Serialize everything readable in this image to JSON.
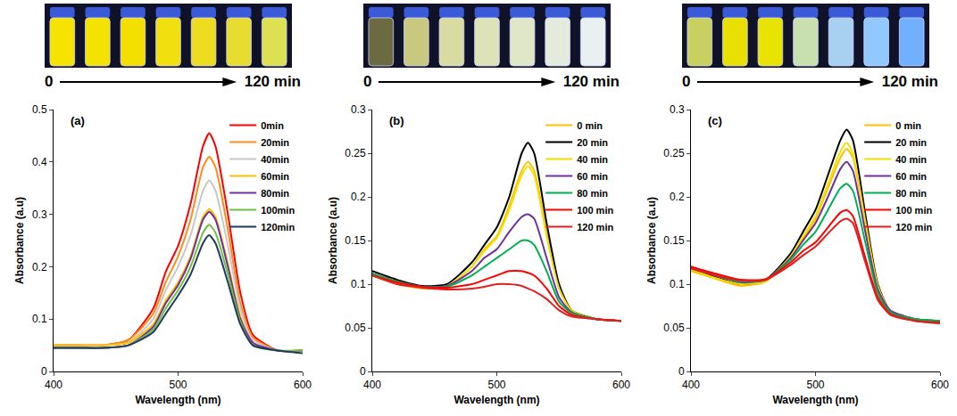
{
  "chart_data": [
    {
      "type": "line",
      "annotations": [
        "(a)",
        "0",
        "120 min"
      ],
      "x_label": "Wavelength (nm)",
      "y_label": "Absorbance (a.u)",
      "xlim": [
        400,
        600
      ],
      "xticks": [
        400,
        500,
        600
      ],
      "ylim": [
        0,
        0.5
      ],
      "yticks": [
        0,
        0.1,
        0.2,
        0.3,
        0.4,
        0.5
      ],
      "legend": "upper right",
      "grid": false,
      "x": [
        400,
        420,
        440,
        460,
        480,
        490,
        500,
        510,
        520,
        525,
        530,
        540,
        550,
        560,
        580,
        600
      ],
      "series": [
        {
          "name": "0min",
          "color": "#ff0000",
          "values": [
            0.05,
            0.05,
            0.05,
            0.06,
            0.12,
            0.19,
            0.24,
            0.32,
            0.43,
            0.455,
            0.43,
            0.3,
            0.15,
            0.07,
            0.04,
            0.04
          ]
        },
        {
          "name": "20min",
          "color": "#ff8c1a",
          "values": [
            0.05,
            0.05,
            0.05,
            0.06,
            0.11,
            0.17,
            0.22,
            0.29,
            0.39,
            0.41,
            0.39,
            0.27,
            0.13,
            0.065,
            0.04,
            0.04
          ]
        },
        {
          "name": "40min",
          "color": "#c8c8c8",
          "values": [
            0.05,
            0.05,
            0.05,
            0.055,
            0.1,
            0.155,
            0.2,
            0.26,
            0.345,
            0.365,
            0.345,
            0.24,
            0.12,
            0.06,
            0.04,
            0.04
          ]
        },
        {
          "name": "60min",
          "color": "#ffc000",
          "values": [
            0.05,
            0.05,
            0.05,
            0.055,
            0.09,
            0.135,
            0.17,
            0.22,
            0.295,
            0.31,
            0.295,
            0.205,
            0.105,
            0.055,
            0.04,
            0.04
          ]
        },
        {
          "name": "80min",
          "color": "#7030a0",
          "values": [
            0.045,
            0.045,
            0.045,
            0.05,
            0.085,
            0.13,
            0.165,
            0.215,
            0.29,
            0.305,
            0.29,
            0.2,
            0.1,
            0.055,
            0.04,
            0.04
          ]
        },
        {
          "name": "100min",
          "color": "#70c040",
          "values": [
            0.045,
            0.045,
            0.045,
            0.05,
            0.08,
            0.12,
            0.155,
            0.2,
            0.265,
            0.28,
            0.265,
            0.185,
            0.095,
            0.05,
            0.04,
            0.04
          ]
        },
        {
          "name": "120min",
          "color": "#1f3864",
          "values": [
            0.045,
            0.045,
            0.045,
            0.05,
            0.075,
            0.11,
            0.145,
            0.185,
            0.245,
            0.26,
            0.245,
            0.17,
            0.09,
            0.05,
            0.04,
            0.035
          ]
        }
      ]
    },
    {
      "type": "line",
      "annotations": [
        "(b)",
        "0",
        "120 min"
      ],
      "x_label": "Wavelength (nm)",
      "y_label": "Absorbance (a.u)",
      "xlim": [
        400,
        600
      ],
      "xticks": [
        400,
        500,
        600
      ],
      "ylim": [
        0,
        0.3
      ],
      "yticks": [
        0,
        0.05,
        0.1,
        0.15,
        0.2,
        0.25,
        0.3
      ],
      "legend": "upper right",
      "grid": false,
      "x": [
        400,
        420,
        440,
        460,
        480,
        490,
        500,
        510,
        520,
        525,
        530,
        540,
        550,
        560,
        580,
        600
      ],
      "series": [
        {
          "name": "0 min",
          "color": "#ffc000",
          "values": [
            0.11,
            0.1,
            0.095,
            0.097,
            0.12,
            0.14,
            0.155,
            0.19,
            0.23,
            0.24,
            0.23,
            0.16,
            0.095,
            0.07,
            0.06,
            0.058
          ]
        },
        {
          "name": "20 min",
          "color": "#000000",
          "values": [
            0.115,
            0.105,
            0.098,
            0.1,
            0.125,
            0.145,
            0.165,
            0.2,
            0.25,
            0.262,
            0.25,
            0.17,
            0.1,
            0.07,
            0.06,
            0.058
          ]
        },
        {
          "name": "40 min",
          "color": "#f2e000",
          "values": [
            0.112,
            0.102,
            0.096,
            0.098,
            0.12,
            0.138,
            0.153,
            0.185,
            0.225,
            0.235,
            0.225,
            0.155,
            0.095,
            0.07,
            0.06,
            0.058
          ]
        },
        {
          "name": "60 min",
          "color": "#7030a0",
          "values": [
            0.112,
            0.103,
            0.097,
            0.098,
            0.115,
            0.13,
            0.14,
            0.16,
            0.177,
            0.18,
            0.175,
            0.13,
            0.085,
            0.068,
            0.06,
            0.058
          ]
        },
        {
          "name": "80 min",
          "color": "#00b050",
          "values": [
            0.112,
            0.103,
            0.097,
            0.097,
            0.11,
            0.12,
            0.13,
            0.14,
            0.15,
            0.15,
            0.145,
            0.115,
            0.08,
            0.067,
            0.06,
            0.058
          ]
        },
        {
          "name": "100 min",
          "color": "#ff0000",
          "values": [
            0.11,
            0.102,
            0.097,
            0.096,
            0.1,
            0.105,
            0.11,
            0.115,
            0.115,
            0.113,
            0.11,
            0.095,
            0.075,
            0.065,
            0.06,
            0.058
          ]
        },
        {
          "name": "120 min",
          "color": "#e02020",
          "values": [
            0.11,
            0.1,
            0.096,
            0.094,
            0.095,
            0.097,
            0.1,
            0.1,
            0.098,
            0.095,
            0.092,
            0.083,
            0.07,
            0.063,
            0.06,
            0.058
          ]
        }
      ]
    },
    {
      "type": "line",
      "annotations": [
        "(c)",
        "0",
        "120 min"
      ],
      "x_label": "Wavelength (nm)",
      "y_label": "Absorbance (a.u)",
      "xlim": [
        400,
        600
      ],
      "xticks": [
        400,
        500,
        600
      ],
      "ylim": [
        0,
        0.3
      ],
      "yticks": [
        0,
        0.05,
        0.1,
        0.15,
        0.2,
        0.25,
        0.3
      ],
      "legend": "upper right",
      "grid": false,
      "x": [
        400,
        420,
        440,
        460,
        480,
        490,
        500,
        510,
        520,
        525,
        530,
        540,
        550,
        560,
        580,
        600
      ],
      "series": [
        {
          "name": "0 min",
          "color": "#ffc000",
          "values": [
            0.115,
            0.106,
            0.098,
            0.103,
            0.13,
            0.152,
            0.175,
            0.21,
            0.245,
            0.255,
            0.245,
            0.168,
            0.096,
            0.07,
            0.06,
            0.058
          ]
        },
        {
          "name": "20 min",
          "color": "#000000",
          "values": [
            0.118,
            0.108,
            0.1,
            0.105,
            0.135,
            0.16,
            0.185,
            0.225,
            0.265,
            0.277,
            0.265,
            0.18,
            0.1,
            0.07,
            0.06,
            0.058
          ]
        },
        {
          "name": "40 min",
          "color": "#f2e000",
          "values": [
            0.117,
            0.107,
            0.1,
            0.104,
            0.132,
            0.155,
            0.178,
            0.215,
            0.252,
            0.262,
            0.25,
            0.172,
            0.098,
            0.07,
            0.06,
            0.058
          ]
        },
        {
          "name": "60 min",
          "color": "#7030a0",
          "values": [
            0.12,
            0.11,
            0.102,
            0.105,
            0.13,
            0.15,
            0.17,
            0.2,
            0.232,
            0.24,
            0.23,
            0.16,
            0.094,
            0.07,
            0.06,
            0.058
          ]
        },
        {
          "name": "80 min",
          "color": "#00b050",
          "values": [
            0.12,
            0.11,
            0.103,
            0.105,
            0.128,
            0.145,
            0.16,
            0.185,
            0.21,
            0.215,
            0.207,
            0.148,
            0.09,
            0.068,
            0.06,
            0.058
          ]
        },
        {
          "name": "100 min",
          "color": "#ff0000",
          "values": [
            0.12,
            0.112,
            0.105,
            0.106,
            0.125,
            0.138,
            0.148,
            0.165,
            0.182,
            0.185,
            0.178,
            0.13,
            0.085,
            0.066,
            0.058,
            0.056
          ]
        },
        {
          "name": "120 min",
          "color": "#e02020",
          "values": [
            0.118,
            0.11,
            0.104,
            0.105,
            0.122,
            0.133,
            0.143,
            0.158,
            0.172,
            0.175,
            0.17,
            0.125,
            0.082,
            0.065,
            0.058,
            0.055
          ]
        }
      ]
    }
  ]
}
